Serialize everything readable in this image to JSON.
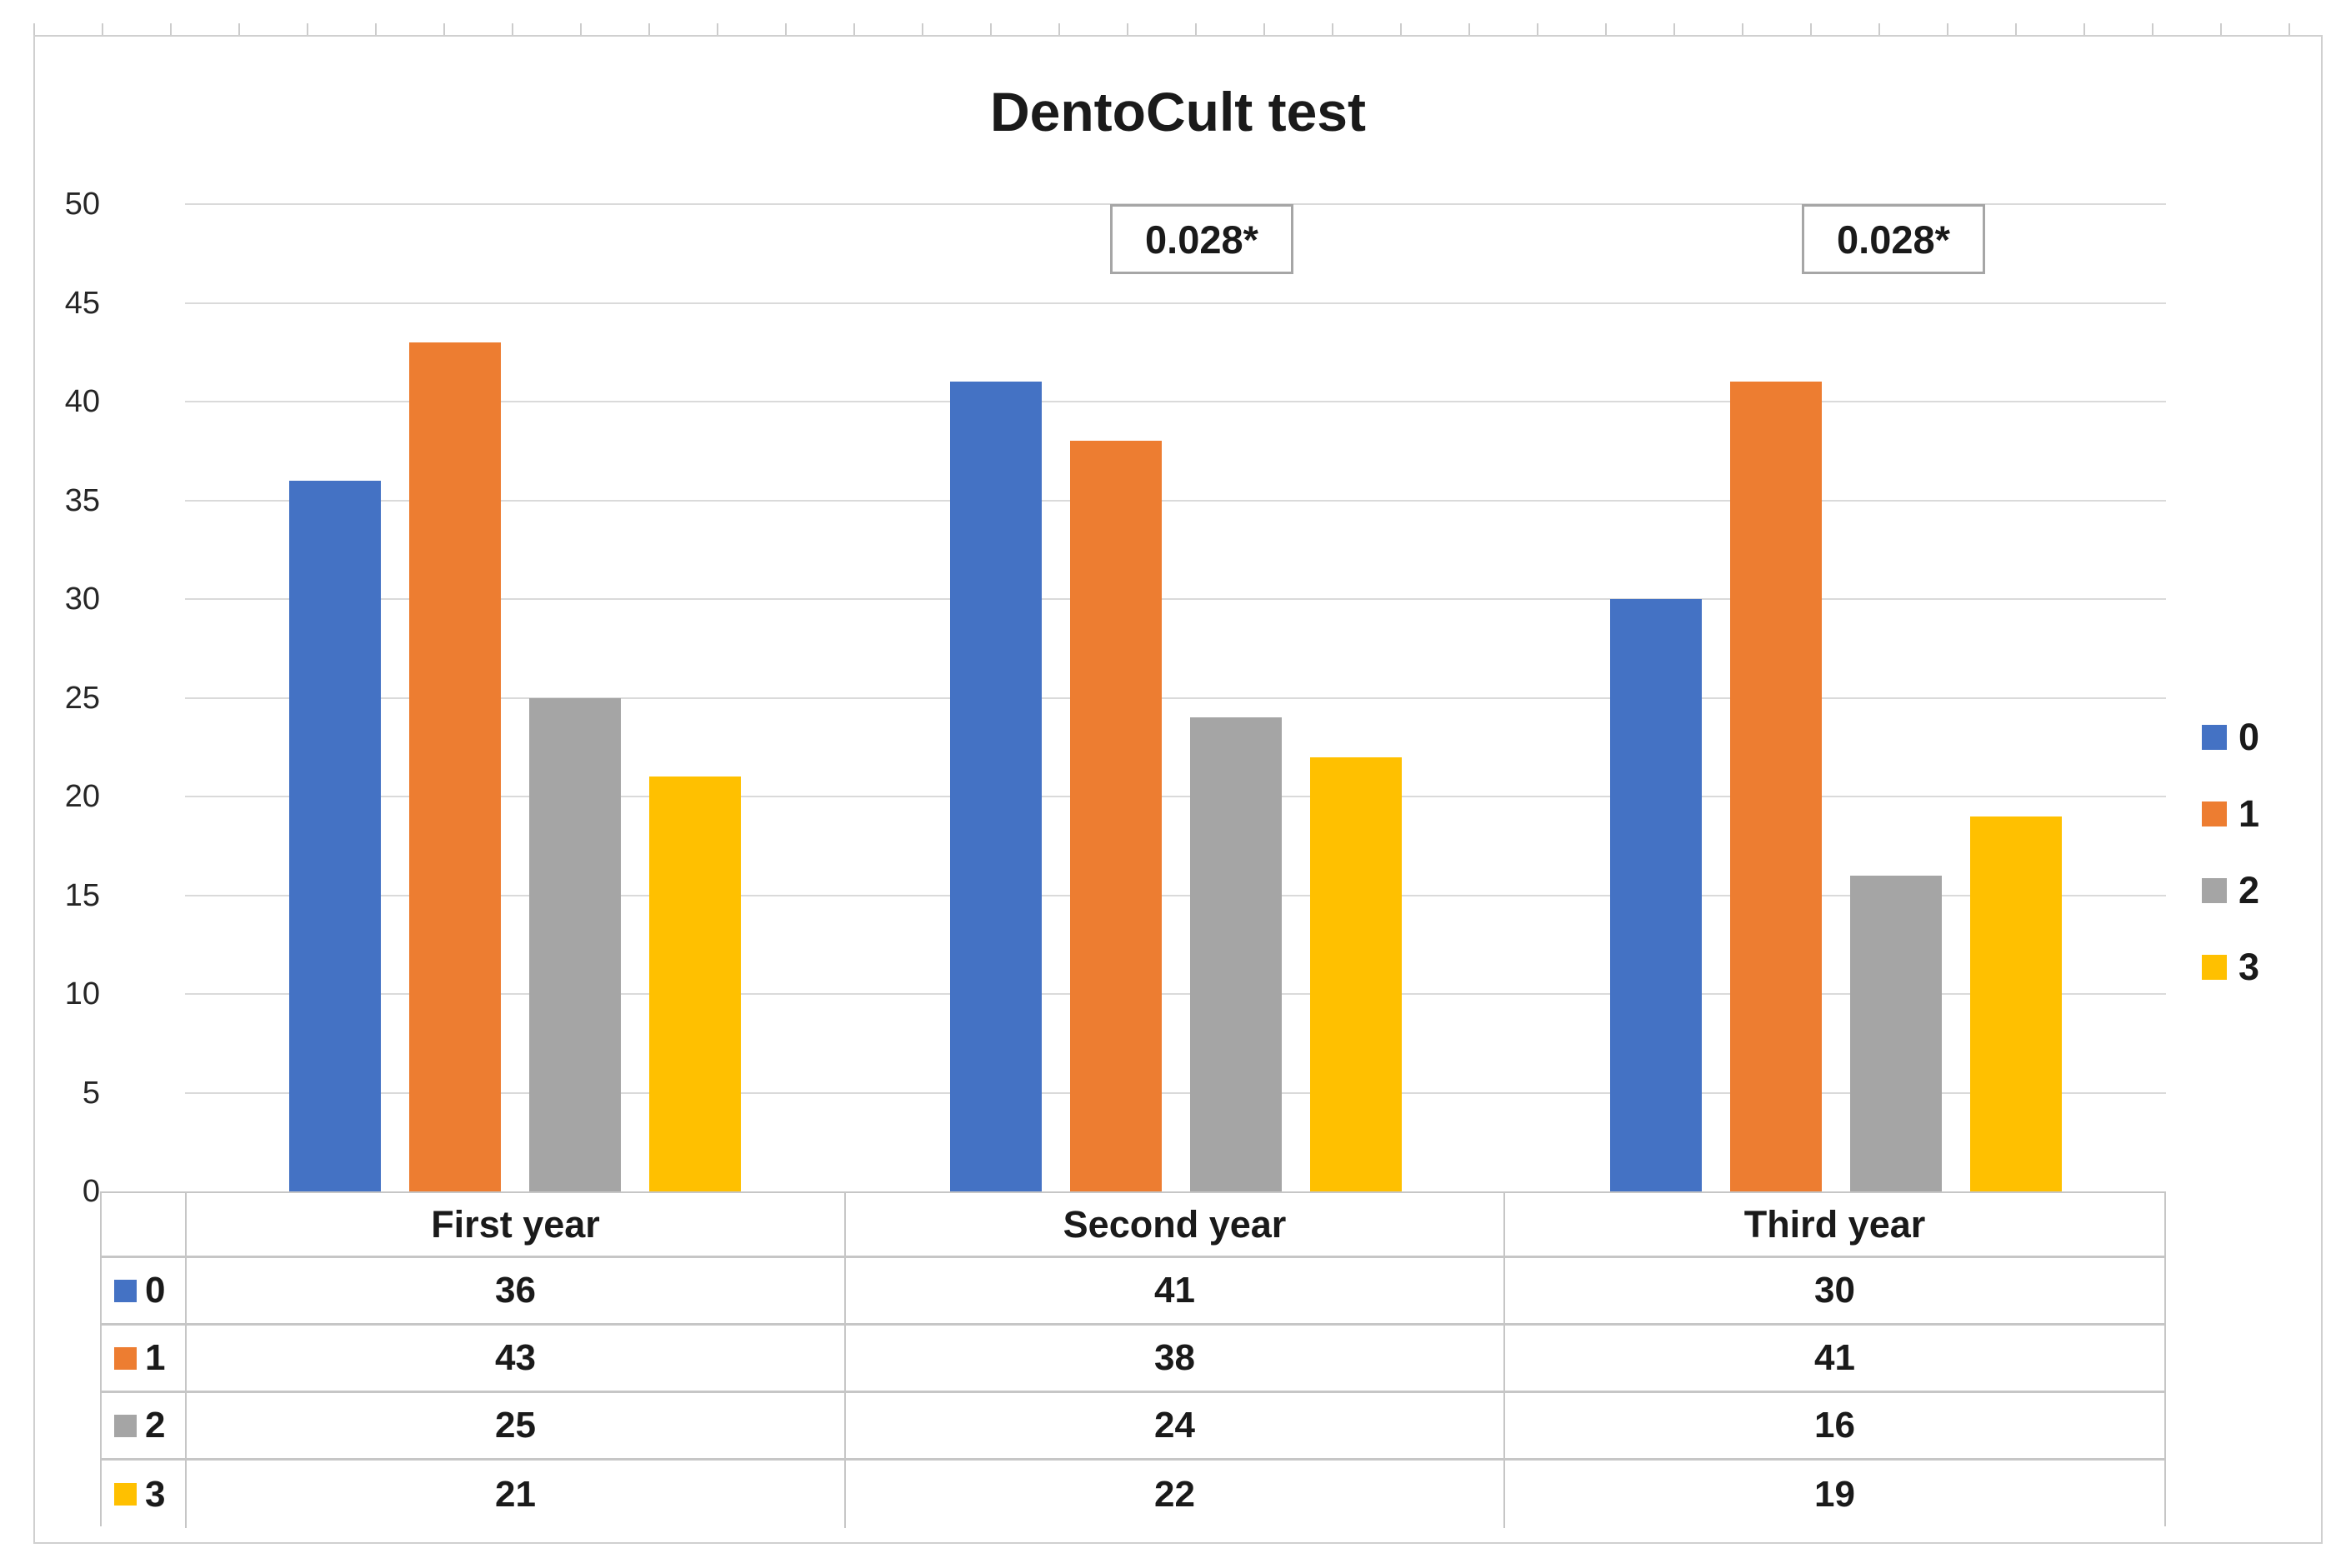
{
  "chart": {
    "title": "DentoCult test",
    "y_axis": {
      "min": 0,
      "max": 50,
      "step": 5,
      "tick_labels": [
        "0",
        "5",
        "10",
        "15",
        "20",
        "25",
        "30",
        "35",
        "40",
        "45",
        "50"
      ]
    },
    "annotations": [
      {
        "text": "0.028*"
      },
      {
        "text": "0.028*"
      }
    ],
    "legend": {
      "position": "right",
      "items": [
        {
          "label": "0",
          "color": "#4472C4"
        },
        {
          "label": "1",
          "color": "#ED7D31"
        },
        {
          "label": "2",
          "color": "#A5A5A5"
        },
        {
          "label": "3",
          "color": "#FFC000"
        }
      ]
    }
  },
  "chart_data": {
    "type": "bar",
    "title": "DentoCult test",
    "categories": [
      "First year",
      "Second year",
      "Third year"
    ],
    "series": [
      {
        "name": "0",
        "color": "#4472C4",
        "values": [
          36,
          41,
          30
        ]
      },
      {
        "name": "1",
        "color": "#ED7D31",
        "values": [
          43,
          38,
          41
        ]
      },
      {
        "name": "2",
        "color": "#A5A5A5",
        "values": [
          25,
          24,
          16
        ]
      },
      {
        "name": "3",
        "color": "#FFC000",
        "values": [
          21,
          22,
          19
        ]
      }
    ],
    "xlabel": "",
    "ylabel": "",
    "ylim": [
      0,
      50
    ],
    "y_step": 5,
    "grid": true,
    "legend_position": "right",
    "annotations": [
      {
        "text": "0.028*",
        "over_category": "Second year"
      },
      {
        "text": "0.028*",
        "over_category": "Third year"
      }
    ]
  },
  "table": {
    "header": [
      "First year",
      "Second year",
      "Third year"
    ],
    "rows": [
      {
        "key": "0",
        "color": "#4472C4",
        "values": [
          "36",
          "41",
          "30"
        ]
      },
      {
        "key": "1",
        "color": "#ED7D31",
        "values": [
          "43",
          "38",
          "41"
        ]
      },
      {
        "key": "2",
        "color": "#A5A5A5",
        "values": [
          "25",
          "24",
          "16"
        ]
      },
      {
        "key": "3",
        "color": "#FFC000",
        "values": [
          "21",
          "22",
          "19"
        ]
      }
    ]
  },
  "colors": {
    "series_blue": "#4472C4",
    "series_orange": "#ED7D31",
    "series_gray": "#A5A5A5",
    "series_yellow": "#FFC000",
    "gridline": "#DADADA",
    "table_border": "#C6C6C6",
    "frame_border": "#D0D0D0",
    "annotation_border": "#A6A6A6",
    "text": "#1A1A1A"
  }
}
